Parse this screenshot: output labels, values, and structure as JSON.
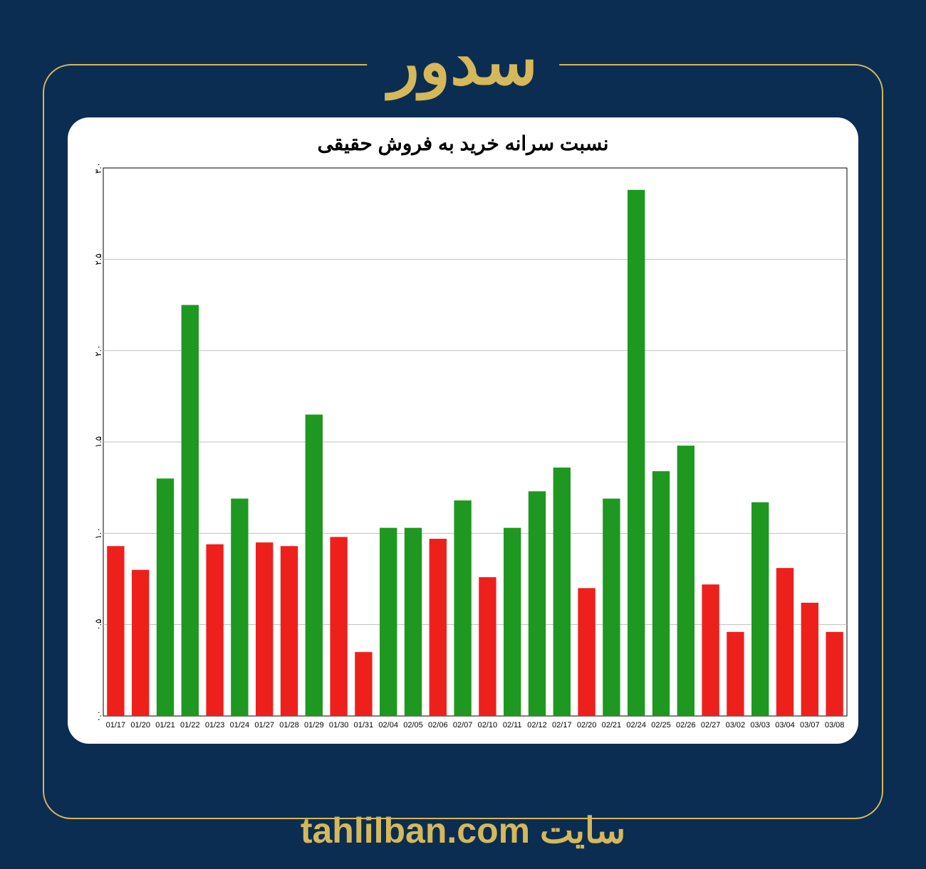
{
  "header": {
    "title": "سدور",
    "title_color": "#d4b85a",
    "title_fontsize": 90
  },
  "frame": {
    "border_color": "#d4b85a",
    "border_radius": 40,
    "background": "#0c2d52"
  },
  "chart": {
    "type": "bar",
    "title": "نسبت سرانه خرید به فروش حقیقی",
    "title_fontsize": 28,
    "title_color": "#000000",
    "background_color": "#ffffff",
    "card_radius": 30,
    "grid_color": "#bfbfbf",
    "axis_color": "#000000",
    "ylim": [
      0.0,
      3.0
    ],
    "ytick_step": 0.5,
    "ytick_labels": [
      "۰.۰",
      "۰.۵",
      "۱.۰",
      "۱.۵",
      "۲.۰",
      "۲.۵",
      "۳.۰"
    ],
    "ytick_fontsize": 12,
    "xtick_fontsize": 11,
    "bar_width_ratio": 0.7,
    "colors": {
      "up": "#1e9820",
      "down": "#ee201c"
    },
    "categories": [
      "01/17",
      "01/20",
      "01/21",
      "01/22",
      "01/23",
      "01/24",
      "01/27",
      "01/28",
      "01/29",
      "01/30",
      "01/31",
      "02/04",
      "02/05",
      "02/06",
      "02/07",
      "02/10",
      "02/11",
      "02/12",
      "02/17",
      "02/20",
      "02/21",
      "02/24",
      "02/25",
      "02/26",
      "02/27",
      "03/02",
      "03/03",
      "03/04",
      "03/07",
      "03/08"
    ],
    "values": [
      0.93,
      0.8,
      1.3,
      2.25,
      0.94,
      1.19,
      0.95,
      0.93,
      1.65,
      0.98,
      0.35,
      1.03,
      1.03,
      0.97,
      1.18,
      0.76,
      1.03,
      1.23,
      1.36,
      0.7,
      1.19,
      2.88,
      1.34,
      1.48,
      0.72,
      0.46,
      1.17,
      0.81,
      0.62,
      0.46
    ],
    "value_colors": [
      "down",
      "down",
      "up",
      "up",
      "down",
      "up",
      "down",
      "down",
      "up",
      "down",
      "down",
      "up",
      "up",
      "down",
      "up",
      "down",
      "up",
      "up",
      "up",
      "down",
      "up",
      "up",
      "up",
      "up",
      "down",
      "down",
      "up",
      "down",
      "down",
      "down"
    ]
  },
  "footer": {
    "label": "سایت",
    "url": "tahlilban.com",
    "color": "#d4b85a",
    "fontsize": 50
  }
}
